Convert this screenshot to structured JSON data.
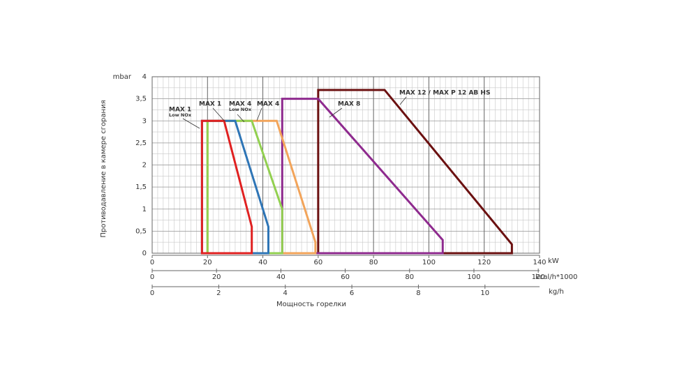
{
  "chart_data": {
    "type": "area-outline",
    "y_label": "Противодавление в камере сгорания",
    "y_unit": "mbar",
    "x_label": "Мощность горелки",
    "x_unit": "kW",
    "xlim": [
      0,
      140
    ],
    "xticks": [
      0,
      20,
      40,
      60,
      80,
      100,
      120,
      140
    ],
    "ylim": [
      0,
      4
    ],
    "yticks": [
      0,
      {
        "value": 0.5,
        "label": "0,5"
      },
      1,
      {
        "value": 1.5,
        "label": "1,5"
      },
      2,
      {
        "value": 2.5,
        "label": "2,5"
      },
      3,
      {
        "value": 3.5,
        "label": "3,5"
      },
      4
    ],
    "grid": true,
    "grid_minor": {
      "x": 2,
      "y": 0.25
    },
    "secondary_x_axes": [
      {
        "unit": "kcal/h*1000",
        "xlim": [
          0,
          120.4
        ],
        "xticks": [
          0,
          20,
          40,
          60,
          80,
          100,
          120
        ]
      },
      {
        "unit": "kg/h",
        "xlim": [
          0,
          11.64
        ],
        "xticks": [
          0,
          2,
          4,
          6,
          8,
          10
        ]
      }
    ],
    "series": [
      {
        "name": "MAX 12 / MAX P 12 AB HS",
        "color": "#6b1010",
        "x": [
          60,
          60,
          84,
          130,
          130
        ],
        "values": [
          0,
          3.7,
          3.7,
          0.2,
          0
        ]
      },
      {
        "name": "MAX 8",
        "color": "#8e2a8e",
        "x": [
          47,
          47,
          60,
          105,
          105
        ],
        "values": [
          0,
          3.5,
          3.5,
          0.3,
          0
        ]
      },
      {
        "name": "MAX 4",
        "color": "#f2a45a",
        "x": [
          20,
          20,
          45,
          59,
          59
        ],
        "values": [
          0,
          3,
          3,
          0.25,
          0
        ]
      },
      {
        "name": "MAX 4",
        "sub": "Low NOx",
        "color": "#92d050",
        "x": [
          20,
          20,
          36,
          47,
          47
        ],
        "values": [
          0,
          3,
          3,
          1,
          0
        ]
      },
      {
        "name": "MAX 1",
        "color": "#2e75b6",
        "x": [
          18,
          18,
          30,
          42,
          42
        ],
        "values": [
          0,
          3,
          3,
          0.6,
          0
        ]
      },
      {
        "name": "MAX 1",
        "sub": "Low NOx",
        "color": "#e02020",
        "x": [
          18,
          18,
          26,
          36,
          36
        ],
        "values": [
          0,
          3,
          3,
          0.6,
          0
        ]
      }
    ]
  }
}
